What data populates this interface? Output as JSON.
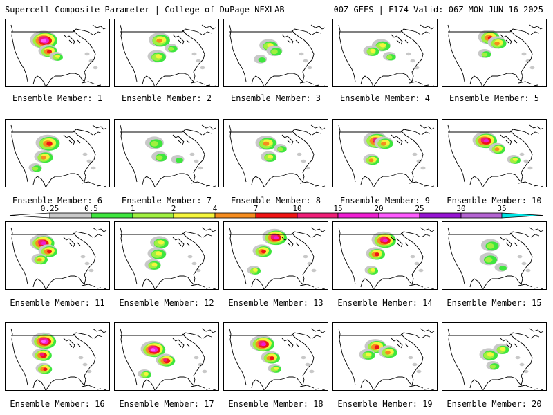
{
  "header": {
    "left": "Supercell Composite Parameter | College of DuPage NEXLAB",
    "right": "00Z GEFS | F174 Valid: 06Z MON JUN 16 2025"
  },
  "colorbar": {
    "labels": [
      "0.25",
      "0.5",
      "1",
      "2",
      "4",
      "7",
      "10",
      "15",
      "20",
      "25",
      "30",
      "35"
    ],
    "colors": [
      "#c8c8c8",
      "#3ee63e",
      "#a0f040",
      "#f5f53c",
      "#f58c1e",
      "#f01414",
      "#f01e78",
      "#f01ed2",
      "#ff5aff",
      "#9614d2",
      "#b464d2",
      "#00e6e6"
    ]
  },
  "panel_prefix": "Ensemble Member: ",
  "members": [
    {
      "label": "Ensemble Member: 1",
      "peak_level": 10,
      "blobs": [
        [
          0.4,
          0.25,
          0.9
        ],
        [
          0.45,
          0.45,
          0.6
        ],
        [
          0.55,
          0.55,
          0.4
        ]
      ]
    },
    {
      "label": "Ensemble Member: 2",
      "peak_level": 7,
      "blobs": [
        [
          0.48,
          0.25,
          0.7
        ],
        [
          0.45,
          0.55,
          0.6
        ],
        [
          0.62,
          0.4,
          0.4
        ]
      ]
    },
    {
      "label": "Ensemble Member: 3",
      "peak_level": 6,
      "blobs": [
        [
          0.48,
          0.35,
          0.6
        ],
        [
          0.55,
          0.45,
          0.5
        ],
        [
          0.38,
          0.6,
          0.4
        ]
      ]
    },
    {
      "label": "Ensemble Member: 4",
      "peak_level": 7,
      "blobs": [
        [
          0.52,
          0.35,
          0.6
        ],
        [
          0.4,
          0.45,
          0.5
        ],
        [
          0.62,
          0.55,
          0.4
        ]
      ]
    },
    {
      "label": "Ensemble Member: 5",
      "peak_level": 8,
      "blobs": [
        [
          0.5,
          0.2,
          0.7
        ],
        [
          0.6,
          0.3,
          0.6
        ],
        [
          0.45,
          0.5,
          0.4
        ]
      ]
    },
    {
      "label": "Ensemble Member: 6",
      "peak_level": 8,
      "blobs": [
        [
          0.45,
          0.3,
          0.8
        ],
        [
          0.4,
          0.55,
          0.6
        ],
        [
          0.3,
          0.75,
          0.4
        ]
      ]
    },
    {
      "label": "Ensemble Member: 7",
      "peak_level": 5,
      "blobs": [
        [
          0.42,
          0.3,
          0.6
        ],
        [
          0.48,
          0.55,
          0.5
        ],
        [
          0.7,
          0.6,
          0.4
        ]
      ]
    },
    {
      "label": "Ensemble Member: 8",
      "peak_level": 7,
      "blobs": [
        [
          0.45,
          0.3,
          0.7
        ],
        [
          0.48,
          0.55,
          0.5
        ],
        [
          0.62,
          0.4,
          0.4
        ]
      ]
    },
    {
      "label": "Ensemble Member: 9",
      "peak_level": 9,
      "blobs": [
        [
          0.45,
          0.25,
          0.8
        ],
        [
          0.55,
          0.3,
          0.6
        ],
        [
          0.4,
          0.6,
          0.5
        ]
      ]
    },
    {
      "label": "Ensemble Member: 10",
      "peak_level": 10,
      "blobs": [
        [
          0.45,
          0.25,
          0.8
        ],
        [
          0.6,
          0.4,
          0.5
        ],
        [
          0.8,
          0.6,
          0.4
        ]
      ]
    },
    {
      "label": "Ensemble Member: 11",
      "peak_level": 10,
      "blobs": [
        [
          0.38,
          0.25,
          0.8
        ],
        [
          0.45,
          0.4,
          0.6
        ],
        [
          0.35,
          0.55,
          0.5
        ]
      ]
    },
    {
      "label": "Ensemble Member: 12",
      "peak_level": 7,
      "blobs": [
        [
          0.48,
          0.25,
          0.6
        ],
        [
          0.45,
          0.45,
          0.6
        ],
        [
          0.4,
          0.65,
          0.5
        ]
      ]
    },
    {
      "label": "Ensemble Member: 13",
      "peak_level": 10,
      "blobs": [
        [
          0.55,
          0.15,
          0.8
        ],
        [
          0.4,
          0.4,
          0.6
        ],
        [
          0.3,
          0.75,
          0.4
        ]
      ]
    },
    {
      "label": "Ensemble Member: 14",
      "peak_level": 10,
      "blobs": [
        [
          0.55,
          0.2,
          0.8
        ],
        [
          0.45,
          0.45,
          0.6
        ],
        [
          0.4,
          0.75,
          0.4
        ]
      ]
    },
    {
      "label": "Ensemble Member: 15",
      "peak_level": 5,
      "blobs": [
        [
          0.52,
          0.3,
          0.6
        ],
        [
          0.5,
          0.55,
          0.6
        ],
        [
          0.65,
          0.7,
          0.4
        ]
      ]
    },
    {
      "label": "Ensemble Member: 16",
      "peak_level": 11,
      "blobs": [
        [
          0.4,
          0.2,
          0.8
        ],
        [
          0.38,
          0.45,
          0.6
        ],
        [
          0.4,
          0.7,
          0.5
        ]
      ]
    },
    {
      "label": "Ensemble Member: 17",
      "peak_level": 11,
      "blobs": [
        [
          0.4,
          0.35,
          0.8
        ],
        [
          0.55,
          0.55,
          0.6
        ],
        [
          0.3,
          0.8,
          0.4
        ]
      ]
    },
    {
      "label": "Ensemble Member: 18",
      "peak_level": 10,
      "blobs": [
        [
          0.4,
          0.25,
          0.8
        ],
        [
          0.5,
          0.5,
          0.6
        ],
        [
          0.55,
          0.7,
          0.4
        ]
      ]
    },
    {
      "label": "Ensemble Member: 19",
      "peak_level": 8,
      "blobs": [
        [
          0.45,
          0.3,
          0.7
        ],
        [
          0.6,
          0.4,
          0.6
        ],
        [
          0.35,
          0.45,
          0.5
        ]
      ]
    },
    {
      "label": "Ensemble Member: 20",
      "peak_level": 7,
      "blobs": [
        [
          0.5,
          0.45,
          0.6
        ],
        [
          0.65,
          0.35,
          0.5
        ],
        [
          0.55,
          0.65,
          0.4
        ]
      ]
    }
  ]
}
